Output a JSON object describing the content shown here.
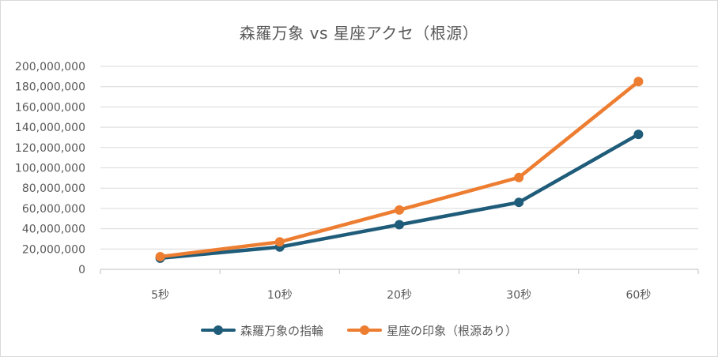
{
  "chart_data": {
    "type": "line",
    "title": "森羅万象 vs 星座アクセ（根源）",
    "categories": [
      "5秒",
      "10秒",
      "20秒",
      "30秒",
      "60秒"
    ],
    "yticks": [
      "0",
      "20,000,000",
      "40,000,000",
      "60,000,000",
      "80,000,000",
      "100,000,000",
      "120,000,000",
      "140,000,000",
      "160,000,000",
      "180,000,000",
      "200,000,000"
    ],
    "ylim": [
      0,
      200000000
    ],
    "grid": true,
    "legend_position": "bottom",
    "series": [
      {
        "name": "森羅万象の指輪",
        "color": "#1f5c7a",
        "values": [
          11000000,
          22000000,
          44000000,
          66000000,
          133000000
        ]
      },
      {
        "name": "星座の印象（根源あり）",
        "color": "#ed7d31",
        "values": [
          12500000,
          27000000,
          58500000,
          90500000,
          185000000
        ]
      }
    ]
  }
}
